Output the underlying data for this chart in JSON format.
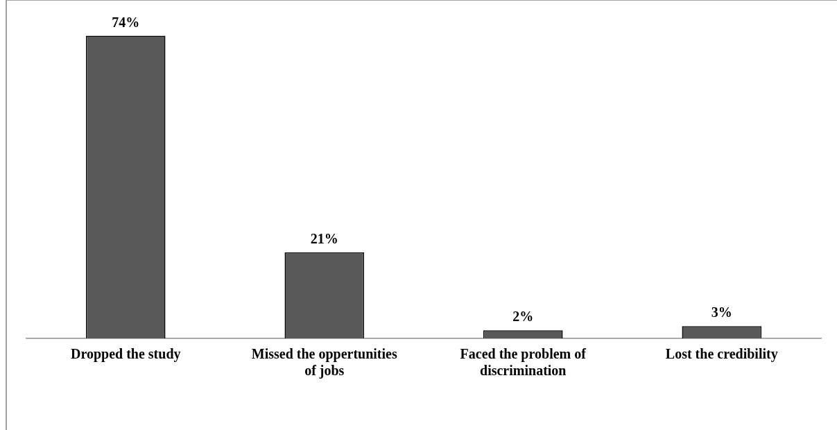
{
  "chart_data": {
    "type": "bar",
    "categories": [
      "Dropped the study",
      "Missed the oppertunities of jobs",
      "Faced the problem of discrimination",
      "Lost the credibility"
    ],
    "values": [
      74,
      21,
      2,
      3
    ],
    "value_labels": [
      "74%",
      "21%",
      "2%",
      "3%"
    ],
    "color": "#595959",
    "grid": false,
    "legend": false
  }
}
